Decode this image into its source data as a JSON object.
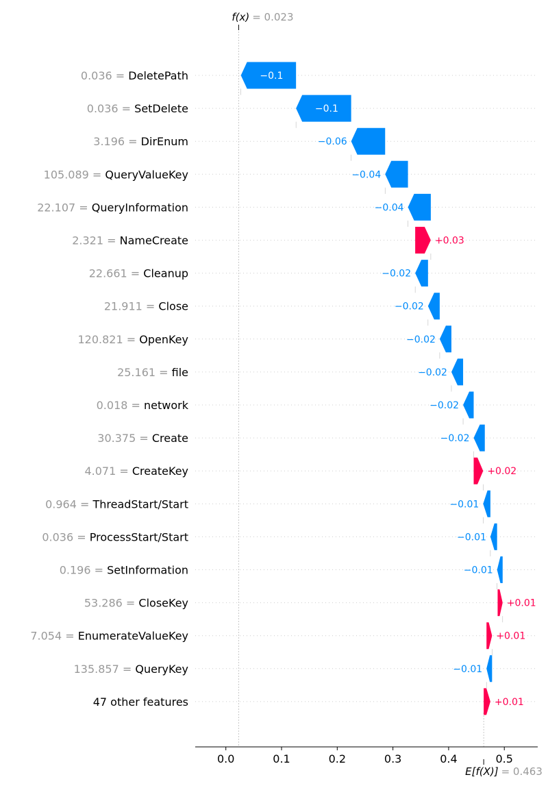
{
  "chart_data": {
    "type": "waterfall",
    "fx": {
      "label": "f(x)",
      "value_text": "= 0.023",
      "value": 0.023
    },
    "efx": {
      "label": "E[f(X)]",
      "value_text": "= 0.463",
      "value": 0.463
    },
    "features": [
      {
        "value": "0.036",
        "name": "DeletePath",
        "contribution": -0.1,
        "label": "−0.1"
      },
      {
        "value": "0.036",
        "name": "SetDelete",
        "contribution": -0.1,
        "label": "−0.1"
      },
      {
        "value": "3.196",
        "name": "DirEnum",
        "contribution": -0.06,
        "label": "−0.06"
      },
      {
        "value": "105.089",
        "name": "QueryValueKey",
        "contribution": -0.04,
        "label": "−0.04"
      },
      {
        "value": "22.107",
        "name": "QueryInformation",
        "contribution": -0.04,
        "label": "−0.04"
      },
      {
        "value": "2.321",
        "name": "NameCreate",
        "contribution": 0.03,
        "label": "+0.03"
      },
      {
        "value": "22.661",
        "name": "Cleanup",
        "contribution": -0.02,
        "label": "−0.02"
      },
      {
        "value": "21.911",
        "name": "Close",
        "contribution": -0.02,
        "label": "−0.02"
      },
      {
        "value": "120.821",
        "name": "OpenKey",
        "contribution": -0.02,
        "label": "−0.02"
      },
      {
        "value": "25.161",
        "name": "file",
        "contribution": -0.02,
        "label": "−0.02"
      },
      {
        "value": "0.018",
        "name": "network",
        "contribution": -0.02,
        "label": "−0.02"
      },
      {
        "value": "30.375",
        "name": "Create",
        "contribution": -0.02,
        "label": "−0.02"
      },
      {
        "value": "4.071",
        "name": "CreateKey",
        "contribution": 0.02,
        "label": "+0.02"
      },
      {
        "value": "0.964",
        "name": "ThreadStart/Start",
        "contribution": -0.01,
        "label": "−0.01"
      },
      {
        "value": "0.036",
        "name": "ProcessStart/Start",
        "contribution": -0.01,
        "label": "−0.01"
      },
      {
        "value": "0.196",
        "name": "SetInformation",
        "contribution": -0.01,
        "label": "−0.01"
      },
      {
        "value": "53.286",
        "name": "CloseKey",
        "contribution": 0.01,
        "label": "+0.01"
      },
      {
        "value": "7.054",
        "name": "EnumerateValueKey",
        "contribution": 0.01,
        "label": "+0.01"
      },
      {
        "value": "135.857",
        "name": "QueryKey",
        "contribution": -0.01,
        "label": "−0.01"
      },
      {
        "value": "",
        "name": "47 other features",
        "contribution": 0.01,
        "label": "+0.01"
      }
    ],
    "bar_ends": [
      [
        0.027,
        0.126
      ],
      [
        0.126,
        0.225
      ],
      [
        0.225,
        0.286
      ],
      [
        0.286,
        0.327
      ],
      [
        0.327,
        0.368
      ],
      [
        0.34,
        0.368
      ],
      [
        0.34,
        0.363
      ],
      [
        0.363,
        0.384
      ],
      [
        0.384,
        0.405
      ],
      [
        0.405,
        0.426
      ],
      [
        0.426,
        0.445
      ],
      [
        0.445,
        0.465
      ],
      [
        0.445,
        0.462
      ],
      [
        0.462,
        0.475
      ],
      [
        0.475,
        0.487
      ],
      [
        0.487,
        0.497
      ],
      [
        0.488,
        0.497
      ],
      [
        0.468,
        0.478
      ],
      [
        0.468,
        0.478
      ],
      [
        0.463,
        0.475
      ]
    ],
    "x_ticks": [
      "0.0",
      "0.1",
      "0.2",
      "0.3",
      "0.4",
      "0.5"
    ],
    "x_tick_values": [
      0.0,
      0.1,
      0.2,
      0.3,
      0.4,
      0.5
    ],
    "xlim": [
      -0.055,
      0.56
    ],
    "colors": {
      "negative": "#008bfb",
      "positive": "#ff0051",
      "value_gray": "#999999",
      "grid": "#cccccc"
    }
  }
}
